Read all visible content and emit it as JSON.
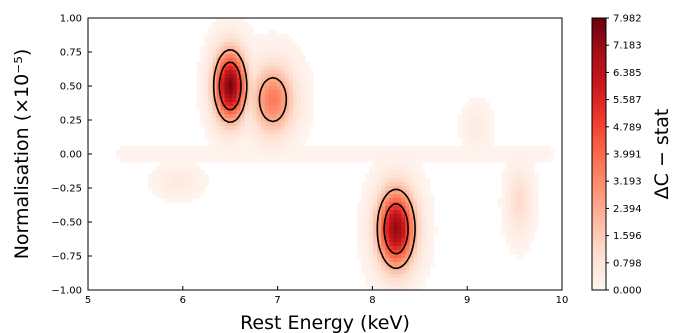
{
  "chart_data": {
    "type": "heatmap",
    "xlabel": "Rest Energy (keV)",
    "ylabel": "Normalisation (×10⁻⁵)",
    "xlim": [
      5,
      10
    ],
    "ylim": [
      -1.0,
      1.0
    ],
    "x_ticks": [
      "5",
      "6",
      "7",
      "8",
      "9",
      "10"
    ],
    "y_ticks": [
      "−1.00",
      "−0.75",
      "−0.50",
      "−0.25",
      "0.00",
      "0.25",
      "0.50",
      "0.75",
      "1.00"
    ],
    "colorbar": {
      "label": "ΔC − stat",
      "min": 0.0,
      "max": 7.982,
      "ticks": [
        "7.982",
        "7.183",
        "6.385",
        "5.587",
        "4.789",
        "3.991",
        "3.193",
        "2.394",
        "1.596",
        "0.798",
        "0.000"
      ],
      "colormap": "Reds"
    },
    "features": [
      {
        "kind": "peak",
        "energy_keV": 6.5,
        "norm": 0.5,
        "peak_dC": 7.9
      },
      {
        "kind": "shoulder",
        "energy_keV": 6.95,
        "norm": 0.4,
        "peak_dC": 3.6
      },
      {
        "kind": "peak",
        "energy_keV": 8.25,
        "norm": -0.55,
        "peak_dC": 7.4
      },
      {
        "kind": "faint",
        "energy_keV": 9.55,
        "norm": -0.35,
        "peak_dC": 1.2
      },
      {
        "kind": "faint",
        "energy_keV": 9.1,
        "norm": 0.2,
        "peak_dC": 0.5
      },
      {
        "kind": "faint",
        "energy_keV": 5.95,
        "norm": -0.2,
        "peak_dC": 0.6
      }
    ],
    "contour_levels": [
      2.3,
      4.61
    ],
    "grid": false
  }
}
